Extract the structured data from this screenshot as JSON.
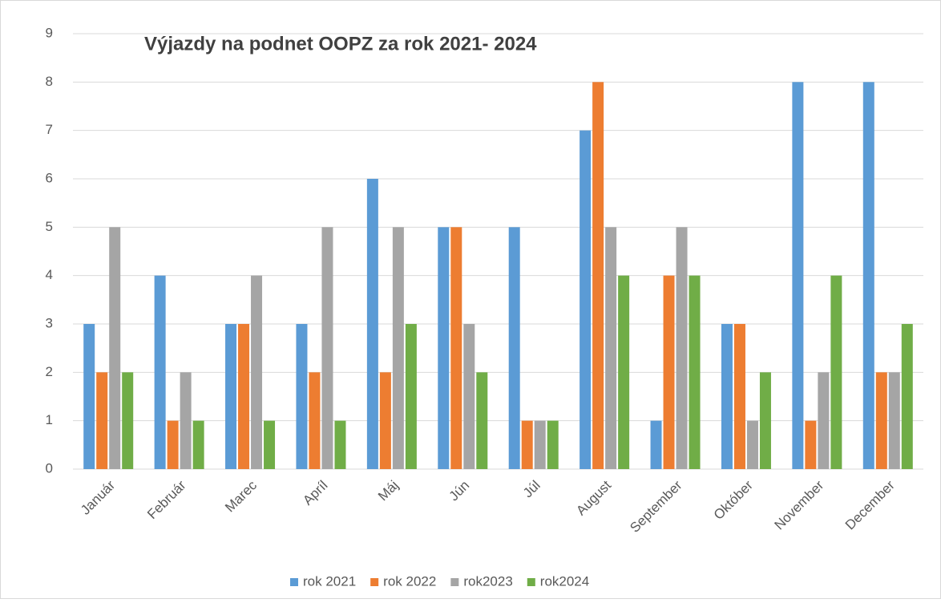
{
  "chart_data": {
    "type": "bar",
    "title": "Výjazdy na podnet OOPZ za rok 2021- 2024",
    "categories": [
      "Január",
      "Február",
      "Marec",
      "Apríl",
      "Máj",
      "Jún",
      "Júl",
      "August",
      "September",
      "Október",
      "November",
      "December"
    ],
    "series": [
      {
        "name": "rok 2021",
        "color": "#5b9bd5",
        "values": [
          3,
          4,
          3,
          3,
          6,
          5,
          5,
          7,
          1,
          3,
          8,
          8
        ]
      },
      {
        "name": "rok 2022",
        "color": "#ed7d31",
        "values": [
          2,
          1,
          3,
          2,
          2,
          5,
          1,
          8,
          4,
          3,
          1,
          2
        ]
      },
      {
        "name": "rok2023",
        "color": "#a5a5a5",
        "values": [
          5,
          2,
          4,
          5,
          5,
          3,
          1,
          5,
          5,
          1,
          2,
          2
        ]
      },
      {
        "name": "rok2024",
        "color": "#70ad47",
        "values": [
          2,
          1,
          1,
          1,
          3,
          2,
          1,
          4,
          4,
          2,
          4,
          3
        ]
      }
    ],
    "ylim": [
      0,
      9
    ],
    "yticks": [
      0,
      1,
      2,
      3,
      4,
      5,
      6,
      7,
      8,
      9
    ],
    "grid": true,
    "legend": "bottom"
  }
}
